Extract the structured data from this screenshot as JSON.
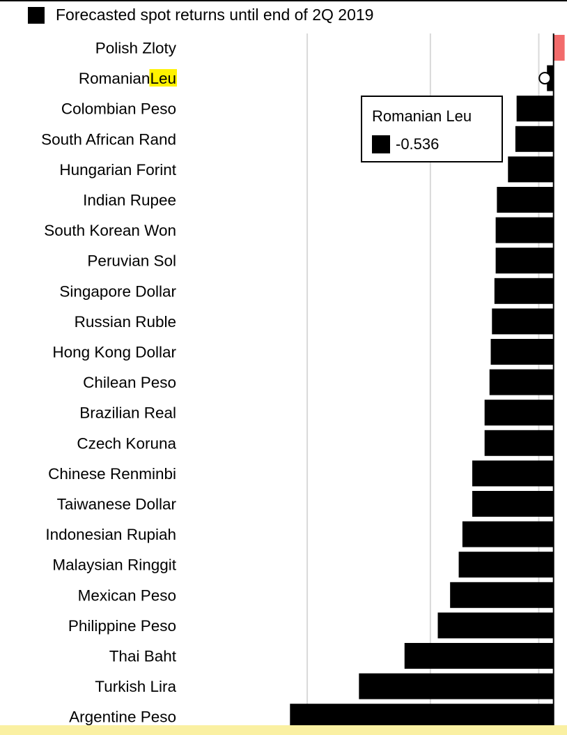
{
  "legend": {
    "label": "Forecasted spot returns until end of 2Q 2019"
  },
  "tooltip": {
    "title": "Romanian Leu",
    "value": "-0.536"
  },
  "colors": {
    "bar": "#000000",
    "positive_bar": "#f26b6b",
    "highlight": "#fff200",
    "grid": "#d9d9d9",
    "bottom_band": "#faf0a2"
  },
  "chart_data": {
    "type": "bar",
    "orientation": "horizontal",
    "series": [
      {
        "name": "Forecasted spot returns until end of 2Q 2019"
      }
    ],
    "highlighted_category": "Romanian Leu",
    "highlight_word": "Leu",
    "xlim": [
      -21.7,
      0.3
    ],
    "gridlines": [
      -20,
      -10,
      -1.2
    ],
    "grid": true,
    "legend_position": "top-left",
    "categories": [
      "Polish Zloty",
      "Romanian Leu",
      "Colombian Peso",
      "South African Rand",
      "Hungarian Forint",
      "Indian Rupee",
      "South Korean Won",
      "Peruvian Sol",
      "Singapore Dollar",
      "Russian Ruble",
      "Hong Kong Dollar",
      "Chilean Peso",
      "Brazilian Real",
      "Czech Koruna",
      "Chinese Renminbi",
      "Taiwanese Dollar",
      "Indonesian Rupiah",
      "Malaysian Ringgit",
      "Mexican Peso",
      "Philippine Peso",
      "Thai Baht",
      "Turkish Lira",
      "Argentine Peso"
    ],
    "values": [
      0.9,
      -0.536,
      -3.0,
      -3.1,
      -3.7,
      -4.6,
      -4.7,
      -4.7,
      -4.8,
      -5.0,
      -5.1,
      -5.2,
      -5.6,
      -5.6,
      -6.6,
      -6.6,
      -7.4,
      -7.7,
      -8.4,
      -9.4,
      -12.1,
      -15.8,
      -21.4
    ]
  }
}
